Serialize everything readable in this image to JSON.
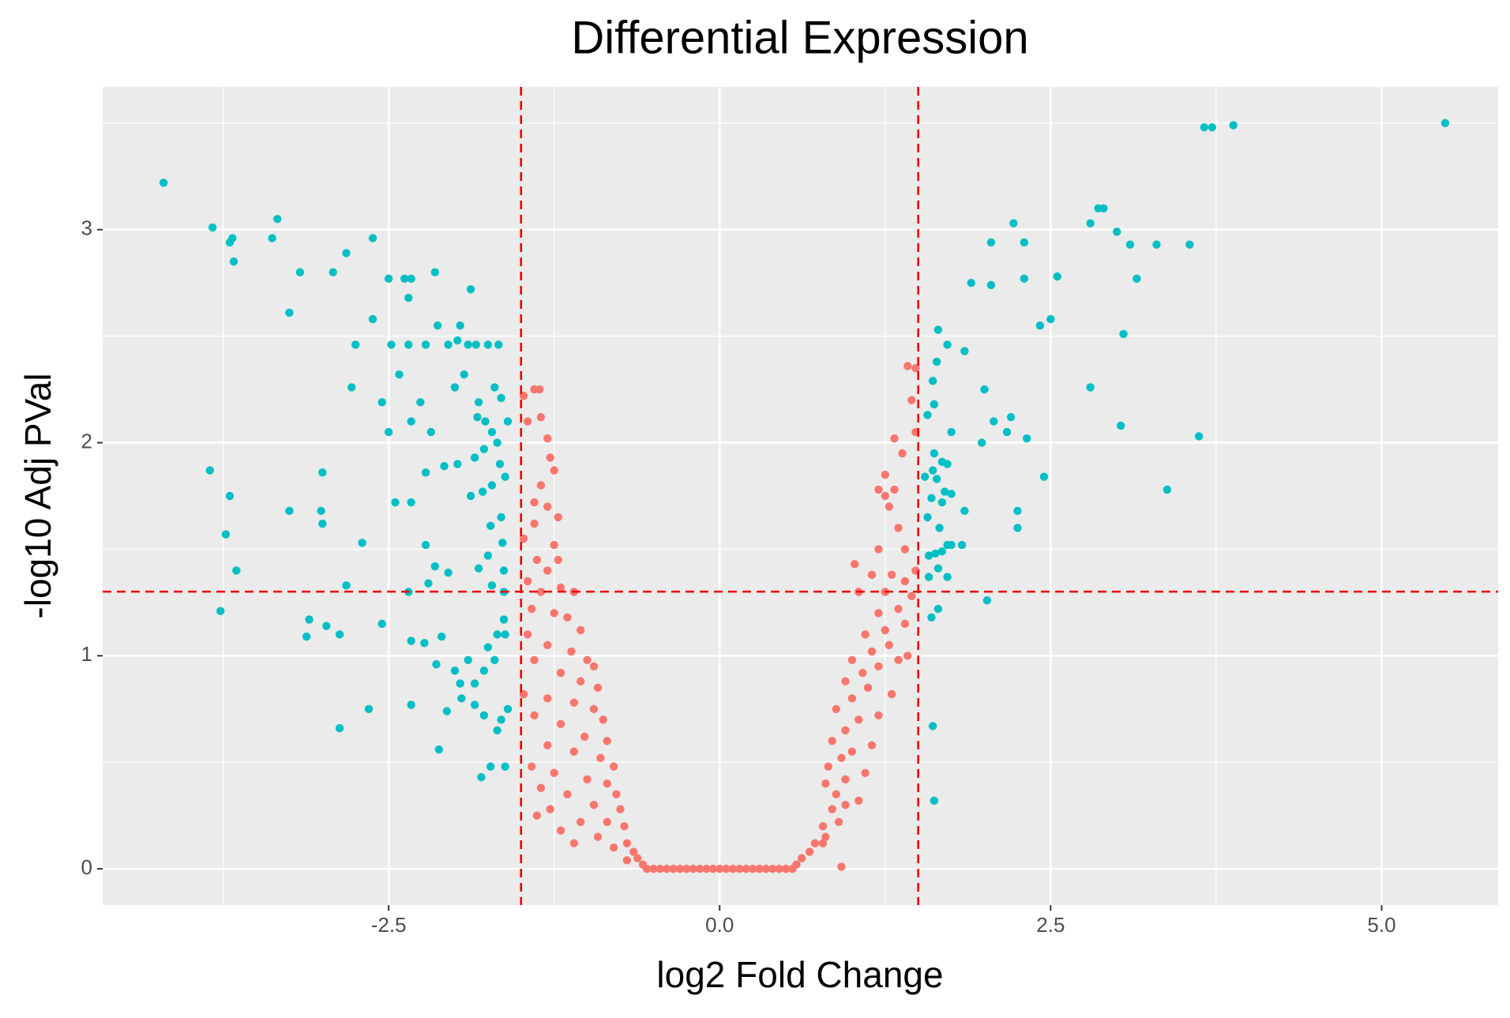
{
  "chart_data": {
    "type": "scatter",
    "title": "Differential Expression",
    "x_label": "log2 Fold Change",
    "y_label": "-log10 Adj PVal",
    "xlim": [
      -4.66,
      5.88
    ],
    "ylim": [
      -0.17,
      3.67
    ],
    "xticks": [
      {
        "value": -2.5,
        "label": "-2.5"
      },
      {
        "value": 0,
        "label": "0.0"
      },
      {
        "value": 2.5,
        "label": "2.5"
      },
      {
        "value": 5,
        "label": "5.0"
      }
    ],
    "yticks": [
      0,
      1,
      2,
      3
    ],
    "grid": true,
    "vlines": [
      -1.5,
      1.5
    ],
    "hline": 1.30103,
    "threshold_color": "#ee0000",
    "series": [
      {
        "color": "#F8766D",
        "x": [
          -1.48,
          -1.4,
          -1.36,
          -1.45,
          -1.35,
          -1.3,
          -1.28,
          -1.25,
          -1.35,
          -1.4,
          -1.3,
          -1.22,
          -1.4,
          -1.48,
          -1.25,
          -1.38,
          -1.3,
          -1.22,
          -1.45,
          -1.35,
          -1.2,
          -1.1,
          -1.42,
          -1.25,
          -1.15,
          -1.05,
          -1.45,
          -1.3,
          -1.12,
          -1.0,
          -0.95,
          -1.4,
          -1.2,
          -1.05,
          -0.92,
          -1.48,
          -1.3,
          -1.1,
          -0.95,
          -0.88,
          -1.4,
          -1.2,
          -1.02,
          -0.85,
          -1.3,
          -1.1,
          -0.9,
          -0.8,
          -1.42,
          -1.25,
          -1.0,
          -0.85,
          -0.78,
          -1.35,
          -1.15,
          -0.95,
          -0.75,
          -1.28,
          -1.05,
          -0.85,
          -0.72,
          -1.38,
          -1.2,
          -0.92,
          -0.7,
          -0.8,
          -1.1,
          -0.65,
          -0.62,
          -0.7,
          -0.58,
          -0.55,
          -0.5,
          -0.45,
          -0.4,
          -0.35,
          -0.3,
          -0.25,
          -0.2,
          -0.15,
          -0.1,
          -0.05,
          0,
          0.05,
          0.1,
          0.15,
          0.2,
          0.25,
          0.3,
          0.35,
          0.4,
          0.45,
          0.5,
          0.55,
          0.58,
          0.62,
          0.68,
          0.72,
          0.8,
          0.78,
          0.9,
          0.85,
          0.95,
          1.05,
          0.88,
          0.8,
          0.95,
          1.1,
          0.82,
          0.92,
          1.0,
          1.15,
          0.85,
          0.95,
          1.05,
          1.2,
          0.88,
          1.0,
          1.12,
          1.3,
          0.95,
          1.08,
          1.2,
          1.35,
          1.0,
          1.15,
          1.28,
          1.42,
          1.1,
          1.25,
          1.4,
          1.2,
          1.35,
          1.45,
          1.05,
          1.25,
          1.4,
          1.15,
          1.3,
          1.48,
          1.02,
          1.2,
          1.4,
          1.35,
          1.25,
          1.28,
          1.32,
          1.2,
          1.38,
          1.32,
          1.25,
          1.45,
          1.48,
          1.42,
          1.48,
          0.92,
          0.78
        ],
        "values": [
          2.22,
          2.25,
          2.25,
          2.1,
          2.12,
          2.02,
          1.93,
          1.87,
          1.8,
          1.72,
          1.7,
          1.65,
          1.62,
          1.55,
          1.52,
          1.45,
          1.4,
          1.45,
          1.35,
          1.3,
          1.32,
          1.3,
          1.22,
          1.2,
          1.18,
          1.12,
          1.1,
          1.05,
          1.02,
          0.98,
          0.95,
          0.98,
          0.92,
          0.88,
          0.85,
          0.82,
          0.8,
          0.78,
          0.75,
          0.7,
          0.72,
          0.68,
          0.62,
          0.6,
          0.58,
          0.55,
          0.52,
          0.48,
          0.48,
          0.45,
          0.42,
          0.4,
          0.35,
          0.38,
          0.35,
          0.3,
          0.28,
          0.28,
          0.22,
          0.22,
          0.2,
          0.25,
          0.18,
          0.15,
          0.12,
          0.1,
          0.12,
          0.08,
          0.05,
          0.04,
          0.02,
          0,
          0,
          0,
          0,
          0,
          0,
          0,
          0,
          0,
          0,
          0,
          0,
          0,
          0,
          0,
          0,
          0,
          0,
          0,
          0,
          0,
          0,
          0,
          0.02,
          0.05,
          0.08,
          0.12,
          0.15,
          0.2,
          0.22,
          0.28,
          0.3,
          0.32,
          0.35,
          0.4,
          0.42,
          0.45,
          0.48,
          0.52,
          0.55,
          0.58,
          0.6,
          0.65,
          0.7,
          0.72,
          0.75,
          0.8,
          0.85,
          0.82,
          0.88,
          0.92,
          0.95,
          0.98,
          0.98,
          1.02,
          1.05,
          1.0,
          1.1,
          1.12,
          1.15,
          1.2,
          1.22,
          1.28,
          1.3,
          1.3,
          1.35,
          1.38,
          1.38,
          1.4,
          1.43,
          1.5,
          1.5,
          1.6,
          1.75,
          1.7,
          1.78,
          1.78,
          1.95,
          2.02,
          1.85,
          2.2,
          2.35,
          2.36,
          2.05,
          0.01,
          0.12
        ]
      },
      {
        "color": "#00BFC4",
        "x": [
          -4.2,
          -3.83,
          -3.7,
          -3.68,
          -3.67,
          -3.38,
          -3.34,
          -3.17,
          -2.92,
          -2.82,
          -3.25,
          -2.75,
          -2.78,
          -2.62,
          -2.5,
          -2.38,
          -2.33,
          -2.35,
          -2.62,
          -2.48,
          -2.15,
          -2.22,
          -2.35,
          -2.05,
          -1.98,
          -1.9,
          -1.84,
          -1.75,
          -1.67,
          -2.13,
          -1.88,
          -1.96,
          -2.42,
          -2.55,
          -2.26,
          -2.33,
          -2.5,
          -2.18,
          -1.93,
          -2.0,
          -1.82,
          -1.7,
          -1.65,
          -1.77,
          -1.83,
          -1.72,
          -1.6,
          -1.68,
          -1.78,
          -1.85,
          -1.98,
          -2.08,
          -2.22,
          -1.66,
          -1.72,
          -1.79,
          -1.88,
          -1.62,
          -1.65,
          -1.73,
          -1.64,
          -1.75,
          -1.82,
          -1.63,
          -1.72,
          -1.63,
          -1.63,
          -1.62,
          -1.68,
          -1.75,
          -1.7,
          -1.78,
          -1.85,
          -1.9,
          -1.96,
          -2.0,
          -1.95,
          -1.85,
          -1.78,
          -1.65,
          -1.6,
          -1.68,
          -1.73,
          -1.62,
          -1.8,
          -2.06,
          -2.14,
          -2.1,
          -2.23,
          -2.33,
          -2.35,
          -2.2,
          -2.15,
          -2.05,
          -2.22,
          -2.33,
          -2.45,
          -2.7,
          -2.82,
          -2.55,
          -2.97,
          -2.87,
          -3.1,
          -3.12,
          -3.25,
          -3.01,
          -3.0,
          -3.0,
          -3.7,
          -3.85,
          -3.73,
          -3.65,
          -3.77,
          -2.87,
          -2.65,
          -2.33,
          -2.12,
          5.48,
          3.88,
          3.72,
          3.66,
          2.86,
          2.9,
          2.22,
          2.8,
          3.0,
          3.1,
          3.3,
          3.55,
          2.05,
          2.3,
          2.05,
          1.9,
          2.3,
          2.55,
          3.15,
          2.5,
          2.42,
          3.05,
          1.65,
          1.72,
          1.85,
          1.64,
          1.61,
          2.0,
          2.8,
          1.62,
          1.57,
          1.75,
          2.07,
          2.2,
          2.17,
          2.32,
          3.03,
          3.62,
          1.98,
          1.62,
          1.68,
          1.61,
          1.55,
          1.64,
          1.72,
          2.45,
          1.7,
          1.75,
          1.68,
          1.6,
          1.57,
          1.66,
          1.85,
          3.38,
          2.25,
          2.25,
          1.63,
          1.68,
          1.72,
          1.75,
          1.83,
          1.58,
          1.65,
          1.72,
          1.58,
          2.02,
          1.65,
          1.6,
          1.61,
          1.62
        ],
        "values": [
          3.22,
          3.01,
          2.94,
          2.96,
          2.85,
          2.96,
          3.05,
          2.8,
          2.8,
          2.89,
          2.61,
          2.46,
          2.26,
          2.96,
          2.77,
          2.77,
          2.77,
          2.68,
          2.58,
          2.46,
          2.8,
          2.46,
          2.46,
          2.46,
          2.48,
          2.46,
          2.46,
          2.46,
          2.46,
          2.55,
          2.72,
          2.55,
          2.32,
          2.19,
          2.19,
          2.1,
          2.05,
          2.05,
          2.32,
          2.26,
          2.19,
          2.26,
          2.21,
          2.1,
          2.12,
          2.05,
          2.1,
          2.0,
          1.97,
          1.93,
          1.9,
          1.89,
          1.86,
          1.9,
          1.8,
          1.77,
          1.75,
          1.84,
          1.65,
          1.61,
          1.53,
          1.47,
          1.41,
          1.4,
          1.33,
          1.3,
          1.17,
          1.1,
          1.1,
          1.04,
          0.98,
          0.93,
          0.87,
          0.98,
          0.87,
          0.93,
          0.8,
          0.77,
          0.72,
          0.7,
          0.75,
          0.65,
          0.48,
          0.48,
          0.43,
          0.74,
          0.96,
          1.09,
          1.06,
          1.07,
          1.3,
          1.34,
          1.42,
          1.39,
          1.52,
          1.72,
          1.72,
          1.53,
          1.33,
          1.15,
          1.14,
          1.1,
          1.17,
          1.09,
          1.68,
          1.68,
          1.62,
          1.86,
          1.75,
          1.87,
          1.57,
          1.4,
          1.21,
          0.66,
          0.75,
          0.77,
          0.56,
          3.5,
          3.49,
          3.48,
          3.48,
          3.1,
          3.1,
          3.03,
          3.03,
          2.99,
          2.93,
          2.93,
          2.93,
          2.94,
          2.94,
          2.74,
          2.75,
          2.77,
          2.78,
          2.77,
          2.58,
          2.55,
          2.51,
          2.53,
          2.46,
          2.43,
          2.38,
          2.29,
          2.25,
          2.26,
          2.18,
          2.13,
          2.05,
          2.1,
          2.12,
          2.05,
          2.02,
          2.08,
          2.03,
          2.0,
          1.95,
          1.91,
          1.87,
          1.84,
          1.83,
          1.9,
          1.84,
          1.77,
          1.76,
          1.72,
          1.74,
          1.65,
          1.6,
          1.68,
          1.78,
          1.68,
          1.6,
          1.48,
          1.49,
          1.52,
          1.52,
          1.52,
          1.47,
          1.41,
          1.37,
          1.37,
          1.26,
          1.22,
          1.18,
          0.67,
          0.32
        ]
      }
    ]
  }
}
